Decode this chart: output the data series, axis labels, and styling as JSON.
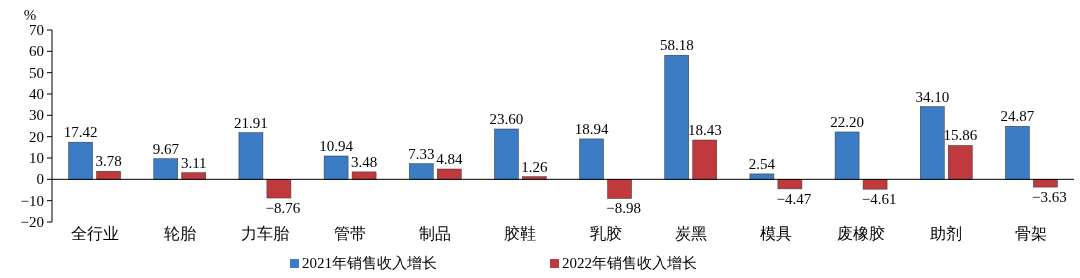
{
  "chart_data": {
    "type": "bar",
    "ylabel": "%",
    "categories": [
      "全行业",
      "轮胎",
      "力车胎",
      "管带",
      "制品",
      "胶鞋",
      "乳胶",
      "炭黑",
      "模具",
      "废橡胶",
      "助剂",
      "骨架"
    ],
    "series": [
      {
        "name": "2021年销售收入增长",
        "color": "#3b7cc4",
        "values": [
          17.42,
          9.67,
          21.91,
          10.94,
          7.33,
          23.6,
          18.94,
          58.18,
          2.54,
          22.2,
          34.1,
          24.87
        ],
        "value_labels": [
          "17.42",
          "9.67",
          "21.91",
          "10.94",
          "7.33",
          "23.60",
          "18.94",
          "58.18",
          "2.54",
          "22.20",
          "34.10",
          "24.87"
        ]
      },
      {
        "name": "2022年销售收入增长",
        "color": "#c0393d",
        "values": [
          3.78,
          3.11,
          -8.76,
          3.48,
          4.84,
          1.26,
          -8.98,
          18.43,
          -4.47,
          -4.61,
          15.86,
          -3.63
        ],
        "value_labels": [
          "3.78",
          "3.11",
          "−8.76",
          "3.48",
          "4.84",
          "1.26",
          "−8.98",
          "18.43",
          "−4.47",
          "−4.61",
          "15.86",
          "−3.63"
        ]
      }
    ],
    "ylim": [
      -20,
      70
    ],
    "yticks": [
      {
        "value": -20,
        "label": "−20"
      },
      {
        "value": -10,
        "label": "−10"
      },
      0,
      10,
      20,
      30,
      40,
      50,
      60,
      70
    ],
    "legend": "bottom"
  }
}
